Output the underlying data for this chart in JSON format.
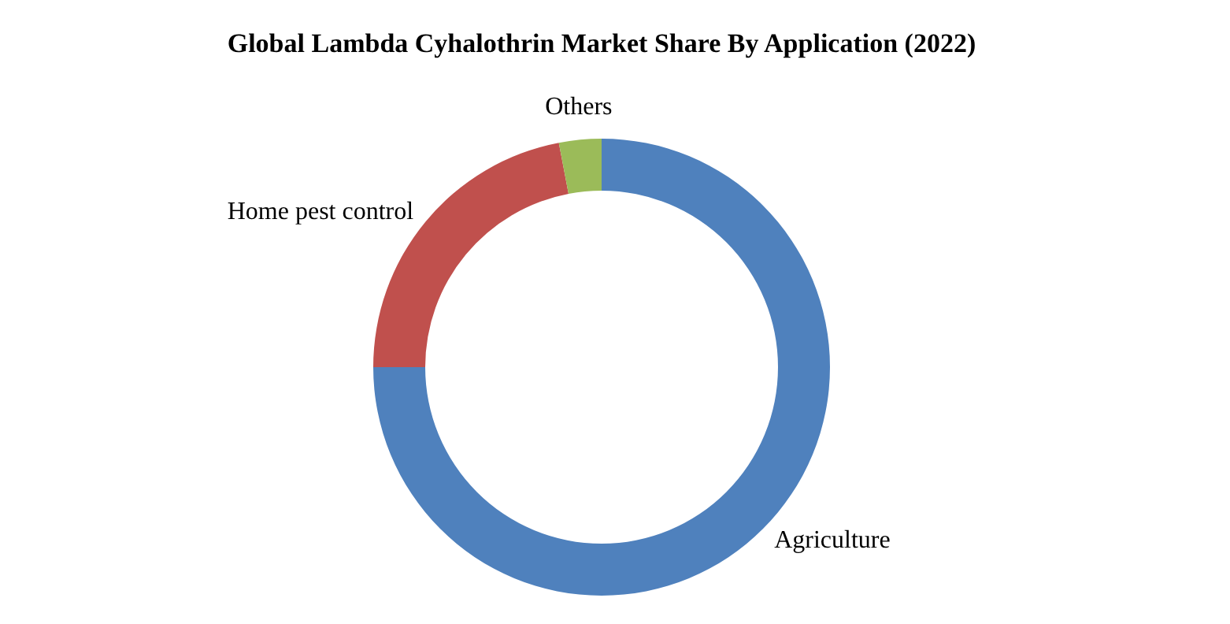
{
  "chart_data": {
    "type": "donut",
    "title": "Global Lambda Cyhalothrin Market Share By Application (2022)",
    "categories": [
      "Agriculture",
      "Home pest control",
      "Others"
    ],
    "values": [
      75,
      22,
      3
    ],
    "colors": [
      "#4f81bd",
      "#c0504d",
      "#9bbb59"
    ],
    "legend": false
  }
}
